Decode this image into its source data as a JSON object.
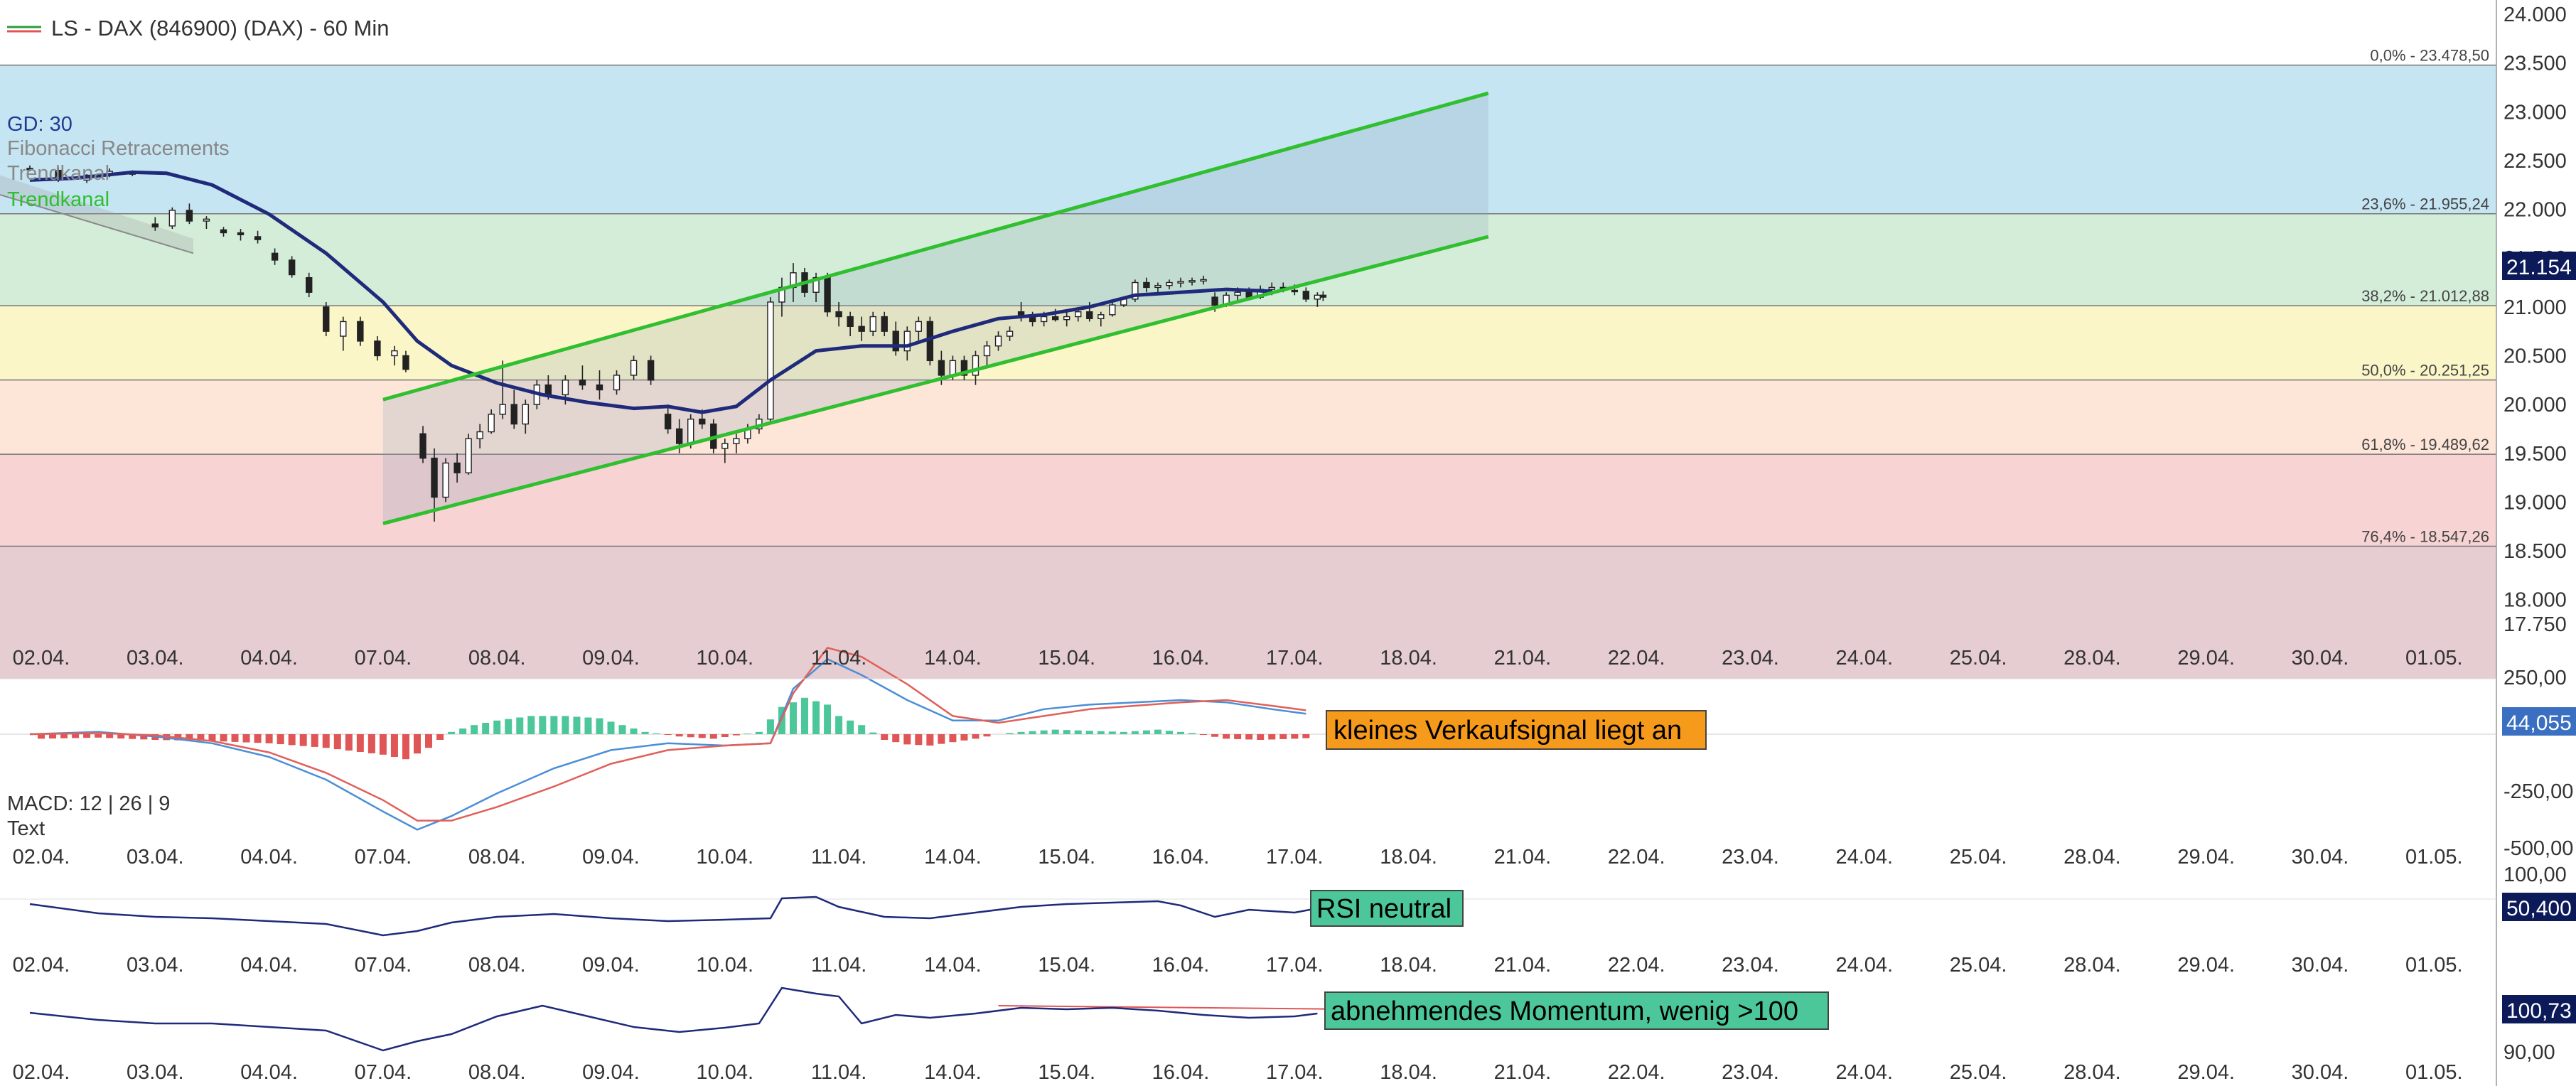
{
  "header": {
    "title": "LS - DAX (846900) (DAX) - 60 Min"
  },
  "overlay_labels": {
    "gd": "GD: 30",
    "fib": "Fibonacci Retracements",
    "trend1": "Trendkanal",
    "trend2": "Trendkanal"
  },
  "colors": {
    "channel": "#2fbf2f",
    "ma": "#1f2a7a",
    "macd_line": "#4a8fd6",
    "signal_line": "#e0605a",
    "hist_pos": "#4cc79a",
    "hist_neg": "#e05555",
    "badge_orange": "#f59a1a",
    "badge_green": "#4cc79a",
    "price_badge": "#0c1a5a"
  },
  "dates": [
    "02.04.",
    "03.04.",
    "04.04.",
    "07.04.",
    "08.04.",
    "09.04.",
    "10.04.",
    "11.04.",
    "14.04.",
    "15.04.",
    "16.04.",
    "17.04.",
    "18.04.",
    "21.04.",
    "22.04.",
    "23.04.",
    "24.04.",
    "25.04.",
    "28.04.",
    "29.04.",
    "30.04.",
    "01.05."
  ],
  "price_axis": {
    "ticks": [
      "24.000",
      "23.500",
      "23.000",
      "22.500",
      "22.000",
      "21.500",
      "21.000",
      "20.500",
      "20.000",
      "19.500",
      "19.000",
      "18.500",
      "18.000",
      "17.750"
    ],
    "tick_values": [
      24000,
      23500,
      23000,
      22500,
      22000,
      21500,
      21000,
      20500,
      20000,
      19500,
      19000,
      18500,
      18000,
      17750
    ],
    "last_price": "21.154"
  },
  "macd_panel": {
    "label": "MACD: 12 | 26 | 9",
    "sublabel": "Text",
    "ticks": [
      "250,00",
      "-250,00",
      "-500,00"
    ],
    "tick_values": [
      250,
      -250,
      -500
    ],
    "last": "44,055",
    "badge": "kleines Verkaufsignal liegt an"
  },
  "rsi_panel": {
    "ticks": [
      "100,00"
    ],
    "last": "50,400",
    "badge": "RSI neutral"
  },
  "mom_panel": {
    "ticks": [
      "90,00"
    ],
    "last": "100,73",
    "badge": "abnehmendes Momentum, wenig >100"
  },
  "chart_data": {
    "type": "candlestick",
    "title": "LS - DAX (846900) (DAX) - 60 Min",
    "x_categories": [
      "02.04.",
      "03.04.",
      "04.04.",
      "07.04.",
      "08.04.",
      "09.04.",
      "10.04.",
      "11.04.",
      "14.04.",
      "15.04.",
      "16.04.",
      "17.04.",
      "18.04.",
      "21.04.",
      "22.04.",
      "23.04.",
      "24.04.",
      "25.04.",
      "28.04.",
      "29.04.",
      "30.04.",
      "01.05."
    ],
    "ylim": [
      17750,
      24000
    ],
    "fibonacci": [
      {
        "label": "0,0% - 23.478,50",
        "level": 23478.5,
        "fill": "#c6e5f3"
      },
      {
        "label": "23,6% - 21.955,24",
        "level": 21955.24,
        "fill": "#d4edd9"
      },
      {
        "label": "38,2% - 21.012,88",
        "level": 21012.88,
        "fill": "#fbf6c8"
      },
      {
        "label": "50,0% - 20.251,25",
        "level": 20251.25,
        "fill": "#fde5d8"
      },
      {
        "label": "61,8% - 19.489,62",
        "level": 19489.62,
        "fill": "#f7d3d3"
      },
      {
        "label": "76,4% - 18.547,26",
        "level": 18547.26,
        "fill": "#e6cdd2"
      }
    ],
    "channel": {
      "lower": [
        {
          "x": 3.0,
          "y": 18780
        },
        {
          "x": 12.7,
          "y": 21720
        }
      ],
      "upper": [
        {
          "x": 3.0,
          "y": 20050
        },
        {
          "x": 12.7,
          "y": 23190
        }
      ]
    },
    "ma_30": [
      [
        -0.1,
        22300
      ],
      [
        0.3,
        22320
      ],
      [
        0.8,
        22380
      ],
      [
        1.1,
        22370
      ],
      [
        1.5,
        22250
      ],
      [
        2.0,
        21950
      ],
      [
        2.5,
        21550
      ],
      [
        3.0,
        21050
      ],
      [
        3.3,
        20650
      ],
      [
        3.6,
        20400
      ],
      [
        4.0,
        20220
      ],
      [
        4.4,
        20100
      ],
      [
        4.8,
        20020
      ],
      [
        5.2,
        19960
      ],
      [
        5.5,
        19980
      ],
      [
        5.8,
        19920
      ],
      [
        6.1,
        19980
      ],
      [
        6.4,
        20250
      ],
      [
        6.8,
        20550
      ],
      [
        7.2,
        20600
      ],
      [
        7.6,
        20600
      ],
      [
        8.0,
        20750
      ],
      [
        8.4,
        20880
      ],
      [
        8.8,
        20920
      ],
      [
        9.2,
        21000
      ],
      [
        9.6,
        21120
      ],
      [
        10.0,
        21150
      ],
      [
        10.4,
        21180
      ],
      [
        10.8,
        21160
      ]
    ],
    "candles": [
      [
        -0.1,
        22420,
        22450,
        22390,
        22410
      ],
      [
        0.15,
        22400,
        22430,
        22280,
        22300
      ],
      [
        0.4,
        22300,
        22360,
        22270,
        22350
      ],
      [
        0.6,
        22360,
        22420,
        22330,
        22390
      ],
      [
        0.8,
        22380,
        22400,
        22340,
        22360
      ],
      [
        1.0,
        21850,
        21920,
        21780,
        21820
      ],
      [
        1.15,
        21830,
        22020,
        21800,
        21990
      ],
      [
        1.3,
        21990,
        22060,
        21850,
        21880
      ],
      [
        1.45,
        21880,
        21930,
        21800,
        21900
      ],
      [
        1.6,
        21790,
        21820,
        21720,
        21760
      ],
      [
        1.75,
        21760,
        21800,
        21680,
        21740
      ],
      [
        1.9,
        21720,
        21780,
        21650,
        21690
      ],
      [
        2.05,
        21550,
        21600,
        21430,
        21480
      ],
      [
        2.2,
        21480,
        21520,
        21300,
        21330
      ],
      [
        2.35,
        21300,
        21350,
        21100,
        21150
      ],
      [
        2.5,
        21000,
        21050,
        20700,
        20750
      ],
      [
        2.65,
        20700,
        20900,
        20550,
        20850
      ],
      [
        2.8,
        20850,
        20900,
        20600,
        20650
      ],
      [
        2.95,
        20650,
        20700,
        20450,
        20500
      ],
      [
        3.1,
        20500,
        20600,
        20400,
        20550
      ],
      [
        3.2,
        20500,
        20550,
        20330,
        20360
      ],
      [
        3.35,
        19700,
        19780,
        19400,
        19450
      ],
      [
        3.45,
        19450,
        19550,
        18800,
        19050
      ],
      [
        3.55,
        19050,
        19450,
        19000,
        19400
      ],
      [
        3.65,
        19400,
        19500,
        19200,
        19300
      ],
      [
        3.75,
        19300,
        19700,
        19280,
        19650
      ],
      [
        3.85,
        19650,
        19800,
        19550,
        19720
      ],
      [
        3.95,
        19720,
        19950,
        19700,
        19900
      ],
      [
        4.05,
        19900,
        20450,
        19850,
        20000
      ],
      [
        4.15,
        20000,
        20150,
        19750,
        19800
      ],
      [
        4.25,
        19800,
        20050,
        19700,
        20000
      ],
      [
        4.35,
        20000,
        20250,
        19950,
        20200
      ],
      [
        4.45,
        20200,
        20300,
        20050,
        20100
      ],
      [
        4.6,
        20100,
        20300,
        20000,
        20250
      ],
      [
        4.75,
        20250,
        20400,
        20150,
        20200
      ],
      [
        4.9,
        20200,
        20350,
        20050,
        20150
      ],
      [
        5.05,
        20150,
        20350,
        20100,
        20300
      ],
      [
        5.2,
        20300,
        20500,
        20250,
        20450
      ],
      [
        5.35,
        20450,
        20500,
        20200,
        20250
      ],
      [
        5.5,
        19900,
        20000,
        19700,
        19750
      ],
      [
        5.6,
        19750,
        19850,
        19500,
        19600
      ],
      [
        5.7,
        19600,
        19900,
        19550,
        19850
      ],
      [
        5.8,
        19850,
        19950,
        19750,
        19800
      ],
      [
        5.9,
        19800,
        19850,
        19500,
        19550
      ],
      [
        6.0,
        19550,
        19650,
        19400,
        19600
      ],
      [
        6.1,
        19600,
        19700,
        19500,
        19650
      ],
      [
        6.2,
        19650,
        19800,
        19600,
        19750
      ],
      [
        6.3,
        19750,
        19900,
        19700,
        19850
      ],
      [
        6.4,
        19850,
        21100,
        19800,
        21050
      ],
      [
        6.5,
        21050,
        21300,
        20900,
        21200
      ],
      [
        6.6,
        21200,
        21450,
        21050,
        21350
      ],
      [
        6.7,
        21350,
        21400,
        21100,
        21150
      ],
      [
        6.8,
        21150,
        21350,
        21050,
        21300
      ],
      [
        6.9,
        21300,
        21350,
        20900,
        20950
      ],
      [
        7.0,
        20950,
        21050,
        20800,
        20900
      ],
      [
        7.1,
        20900,
        20950,
        20700,
        20800
      ],
      [
        7.2,
        20800,
        20900,
        20650,
        20750
      ],
      [
        7.3,
        20750,
        20950,
        20700,
        20900
      ],
      [
        7.4,
        20900,
        20950,
        20700,
        20750
      ],
      [
        7.5,
        20750,
        20850,
        20500,
        20550
      ],
      [
        7.6,
        20550,
        20800,
        20450,
        20750
      ],
      [
        7.7,
        20750,
        20900,
        20650,
        20850
      ],
      [
        7.8,
        20850,
        20900,
        20400,
        20450
      ],
      [
        7.9,
        20450,
        20550,
        20200,
        20300
      ],
      [
        8.0,
        20300,
        20500,
        20250,
        20450
      ],
      [
        8.1,
        20450,
        20500,
        20250,
        20300
      ],
      [
        8.2,
        20300,
        20550,
        20200,
        20500
      ],
      [
        8.3,
        20500,
        20650,
        20400,
        20600
      ],
      [
        8.4,
        20600,
        20750,
        20550,
        20700
      ],
      [
        8.5,
        20700,
        20800,
        20650,
        20750
      ],
      [
        8.6,
        20950,
        21050,
        20850,
        20900
      ],
      [
        8.7,
        20900,
        20950,
        20800,
        20850
      ],
      [
        8.8,
        20850,
        20950,
        20800,
        20900
      ],
      [
        8.9,
        20900,
        20980,
        20850,
        20870
      ],
      [
        9.0,
        20870,
        20950,
        20800,
        20900
      ],
      [
        9.1,
        20900,
        21000,
        20850,
        20950
      ],
      [
        9.2,
        20950,
        21050,
        20850,
        20880
      ],
      [
        9.3,
        20880,
        20950,
        20800,
        20920
      ],
      [
        9.4,
        20920,
        21050,
        20900,
        21020
      ],
      [
        9.5,
        21020,
        21100,
        21000,
        21080
      ],
      [
        9.6,
        21080,
        21280,
        21050,
        21250
      ],
      [
        9.7,
        21250,
        21300,
        21150,
        21200
      ],
      [
        9.8,
        21200,
        21250,
        21150,
        21220
      ],
      [
        9.9,
        21220,
        21280,
        21180,
        21250
      ],
      [
        10.0,
        21250,
        21300,
        21200,
        21260
      ],
      [
        10.1,
        21260,
        21300,
        21220,
        21270
      ],
      [
        10.2,
        21270,
        21320,
        21230,
        21280
      ],
      [
        10.3,
        21100,
        21150,
        20950,
        21020
      ],
      [
        10.4,
        21020,
        21150,
        21000,
        21120
      ],
      [
        10.5,
        21120,
        21200,
        21050,
        21150
      ],
      [
        10.6,
        21150,
        21200,
        21080,
        21100
      ],
      [
        10.7,
        21100,
        21220,
        21080,
        21180
      ],
      [
        10.8,
        21180,
        21250,
        21120,
        21200
      ],
      [
        10.9,
        21200,
        21250,
        21150,
        21170
      ],
      [
        11.0,
        21170,
        21230,
        21120,
        21160
      ],
      [
        11.1,
        21160,
        21200,
        21050,
        21080
      ],
      [
        11.2,
        21080,
        21150,
        21000,
        21120
      ],
      [
        11.25,
        21120,
        21160,
        21060,
        21100
      ]
    ]
  }
}
